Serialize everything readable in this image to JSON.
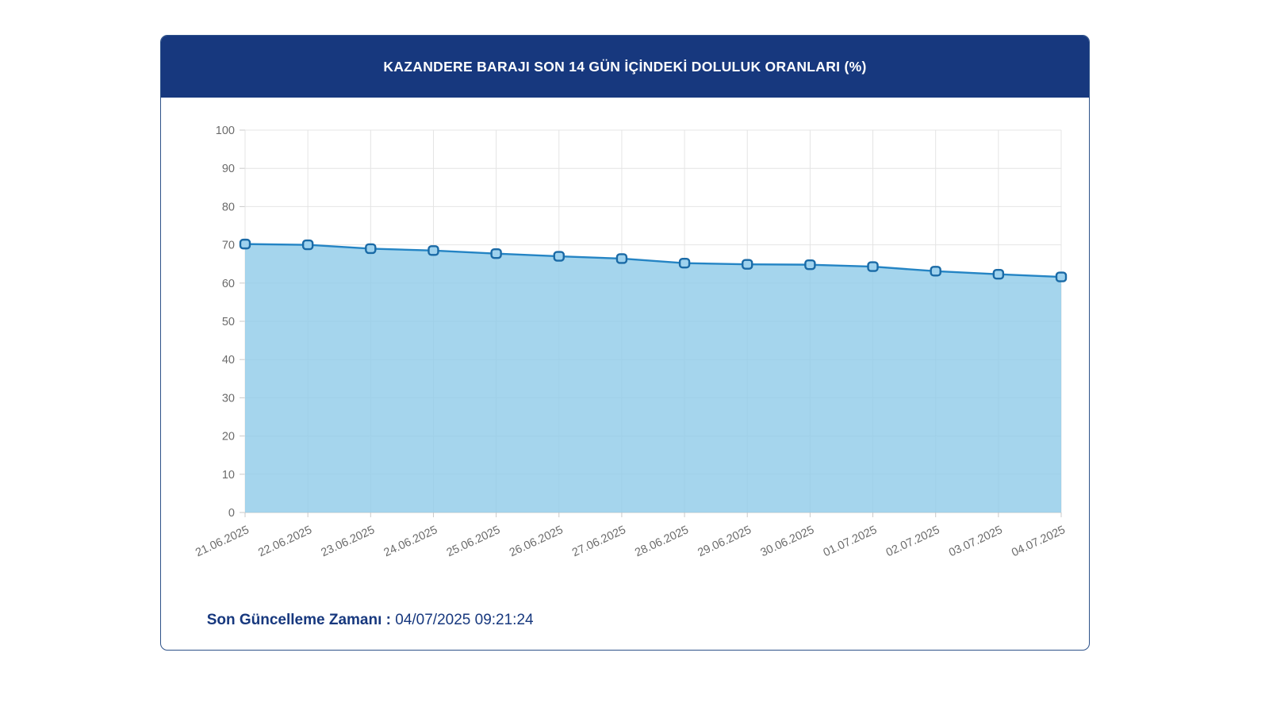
{
  "header": {
    "title": "KAZANDERE BARAJI SON 14 GÜN İÇİNDEKİ DOLULUK ORANLARI (%)"
  },
  "chart_data": {
    "type": "area",
    "title": "KAZANDERE BARAJI SON 14 GÜN İÇİNDEKİ DOLULUK ORANLARI (%)",
    "x": [
      "21.06.2025",
      "22.06.2025",
      "23.06.2025",
      "24.06.2025",
      "25.06.2025",
      "26.06.2025",
      "27.06.2025",
      "28.06.2025",
      "29.06.2025",
      "30.06.2025",
      "01.07.2025",
      "02.07.2025",
      "03.07.2025",
      "04.07.2025"
    ],
    "values": [
      70.2,
      70.0,
      69.0,
      68.5,
      67.7,
      67.0,
      66.4,
      65.2,
      64.9,
      64.8,
      64.3,
      63.1,
      62.3,
      61.6
    ],
    "xlabel": "",
    "ylabel": "",
    "ylim": [
      0,
      100
    ],
    "ytick_step": 10,
    "grid": true,
    "legend": "none",
    "point_style": "rounded-square",
    "x_label_rotation_deg": -25
  },
  "footer": {
    "label": "Son Güncelleme Zamanı",
    "separator": " : ",
    "value": "04/07/2025 09:21:24"
  },
  "colors": {
    "header_bg": "#17387e",
    "title_color": "#ffffff",
    "card_border": "#2d5189",
    "footer_color": "#17387e",
    "line": "#2484c4",
    "area_fill": "#8fcbe9",
    "marker_fill": "#9ed2ee",
    "marker_stroke": "#1a6aa6",
    "grid": "#e4e4e4",
    "axis": "#c9c9c9",
    "tick_text": "#6b6b6b"
  }
}
